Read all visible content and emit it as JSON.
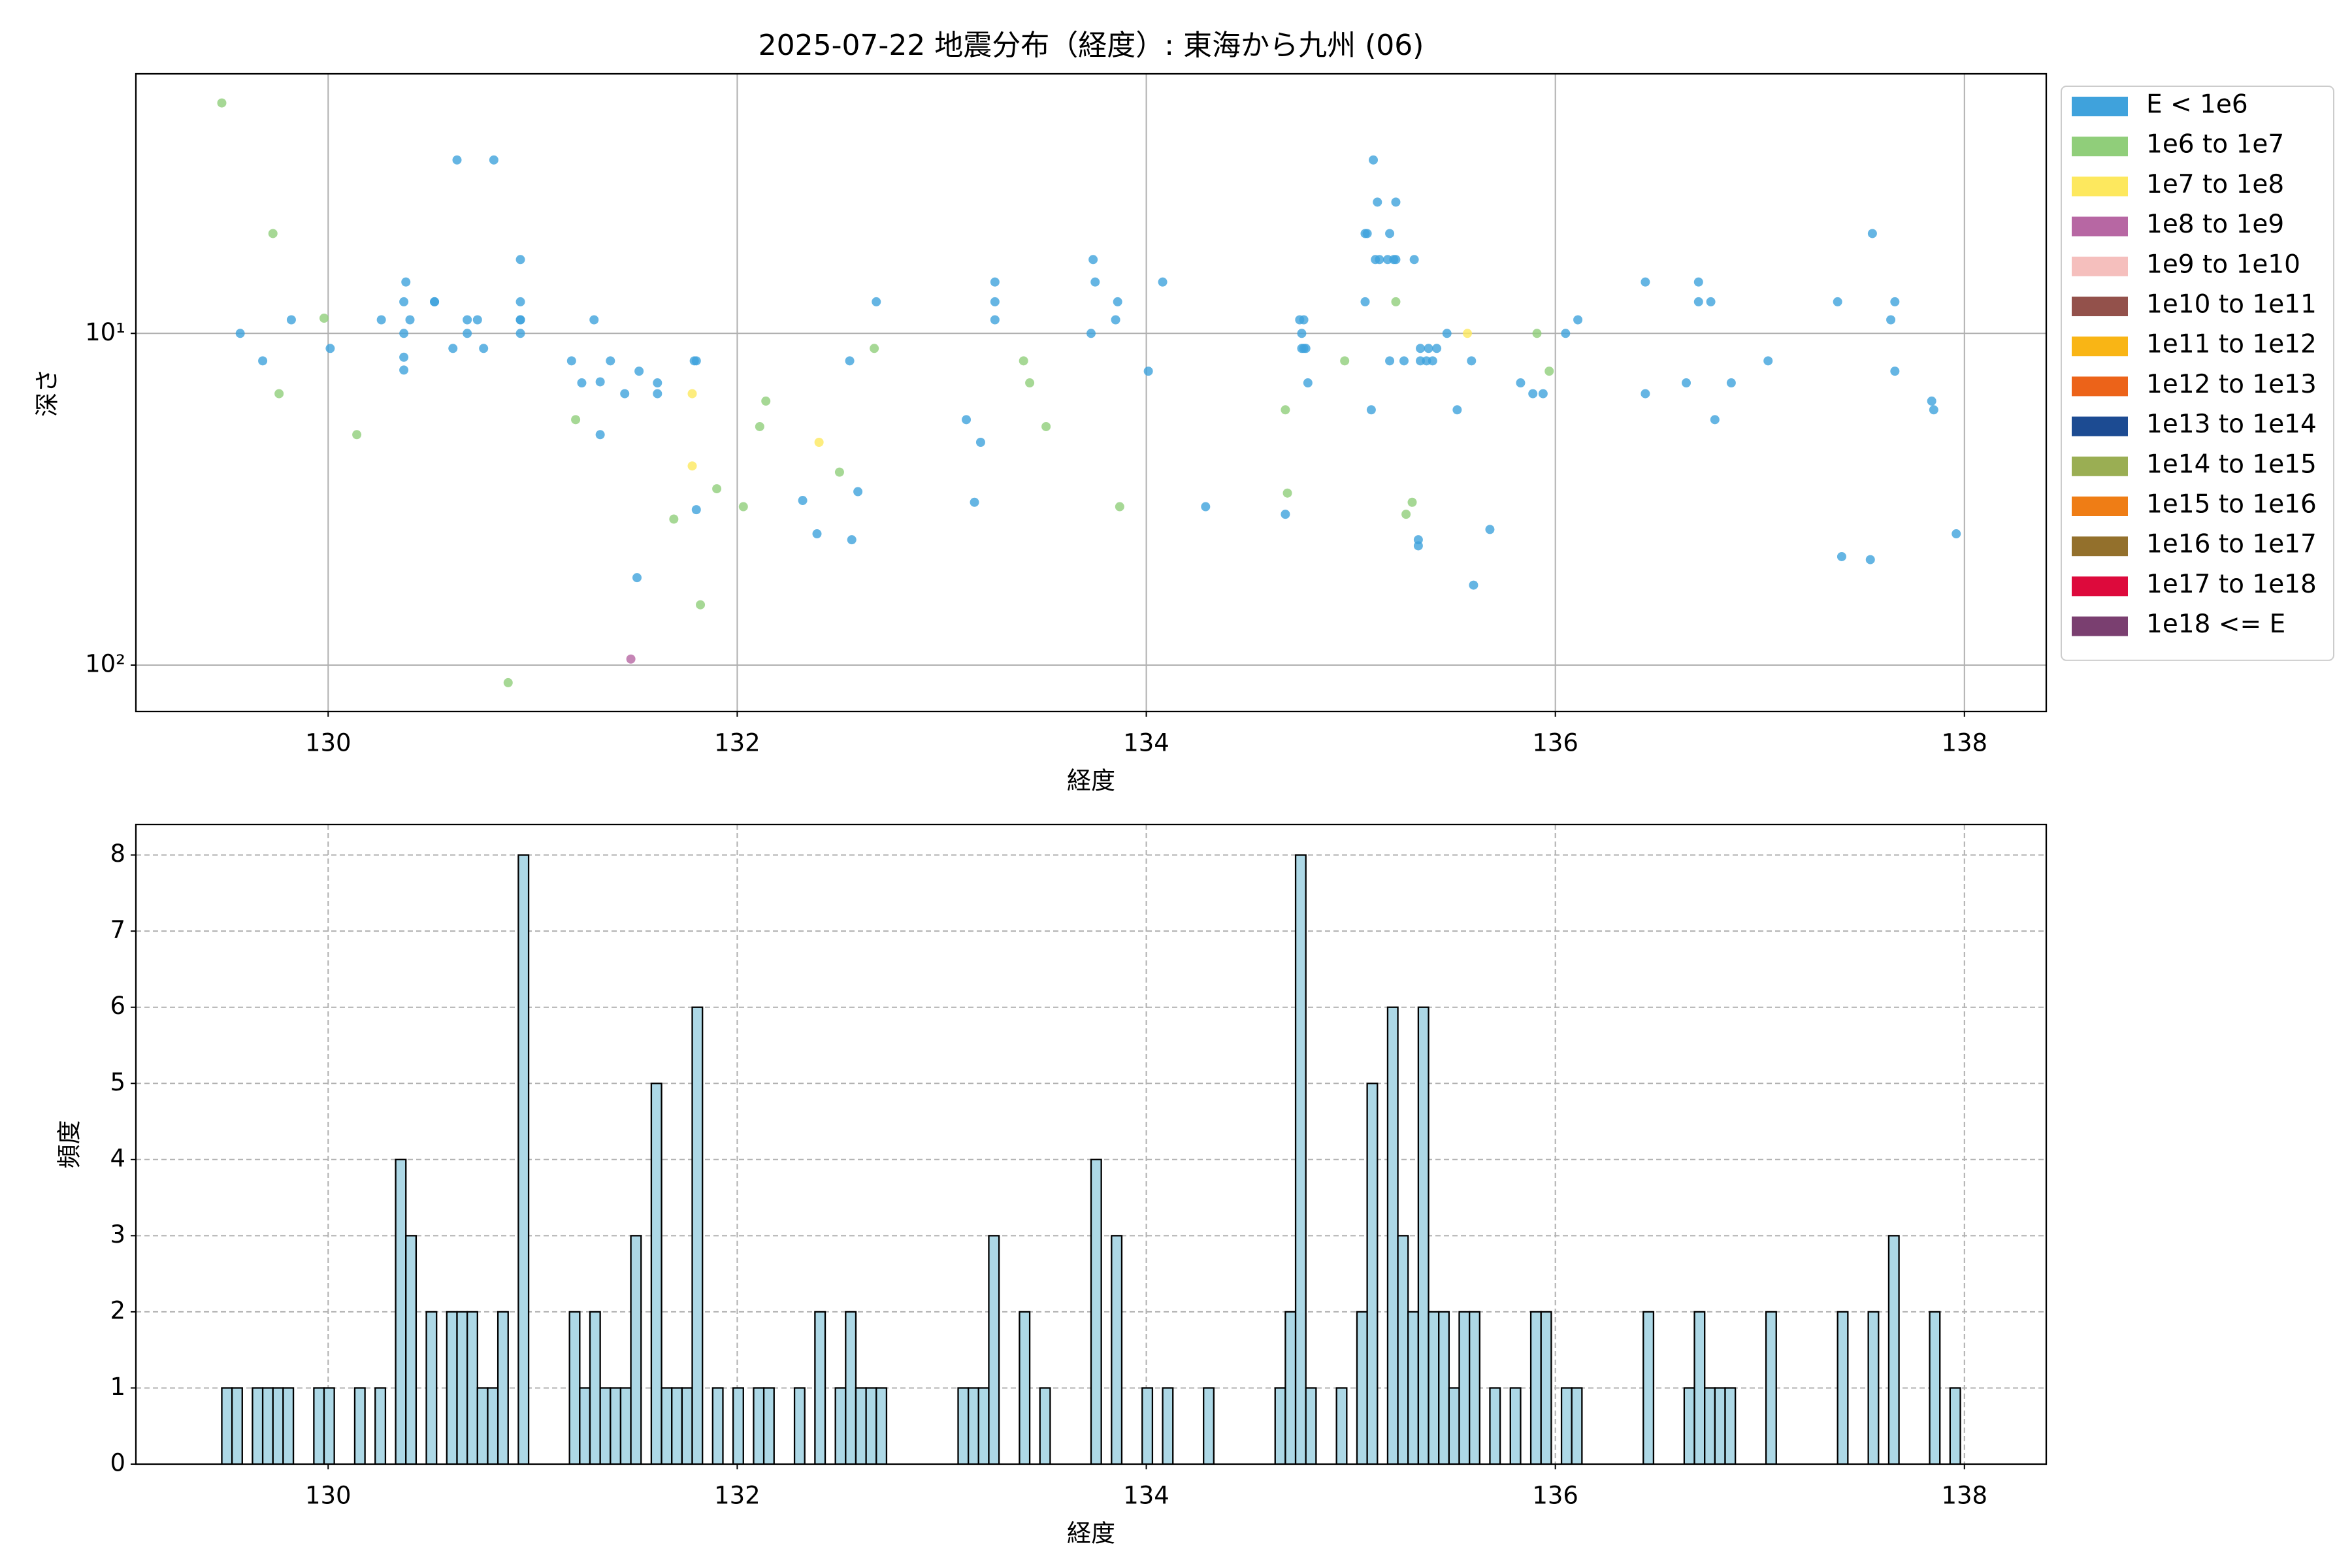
{
  "chart_data": [
    {
      "type": "scatter",
      "title": "2025-07-22 地震分布（経度）: 東海から九州 (06)",
      "xlabel": "経度",
      "ylabel": "深さ",
      "xlim": [
        129.06,
        138.4
      ],
      "xticks": [
        130,
        132,
        134,
        136,
        138
      ],
      "ylim": [
        138,
        1.65
      ],
      "yscale": "log",
      "yticks": [
        {
          "value": 10,
          "label": "10¹"
        },
        {
          "value": 100,
          "label": "10²"
        }
      ],
      "grid": true,
      "grid_style": "solid",
      "legend": "outside-right",
      "series": [
        {
          "name": "E < 1e6",
          "color": "#3fa2dc",
          "x": [
            129.57,
            129.68,
            129.82,
            130.01,
            130.26,
            130.37,
            130.37,
            130.37,
            130.37,
            130.38,
            130.4,
            130.52,
            130.52,
            130.61,
            130.63,
            130.68,
            130.68,
            130.73,
            130.76,
            130.81,
            130.94,
            130.94,
            130.94,
            130.94,
            130.94,
            131.19,
            131.24,
            131.3,
            131.33,
            131.33,
            131.38,
            131.45,
            131.52,
            131.61,
            131.61,
            131.79,
            131.8,
            131.51,
            131.8,
            132.32,
            132.39,
            132.56,
            132.59,
            132.55,
            132.68,
            133.12,
            133.16,
            133.19,
            133.26,
            133.26,
            133.26,
            133.73,
            133.74,
            133.75,
            133.85,
            133.86,
            134.01,
            134.08,
            134.29,
            134.68,
            134.75,
            134.76,
            134.76,
            134.77,
            134.77,
            134.78,
            134.79,
            135.07,
            135.07,
            135.08,
            135.1,
            135.11,
            135.12,
            135.13,
            135.14,
            135.18,
            135.19,
            135.19,
            135.21,
            135.22,
            135.22,
            135.26,
            135.31,
            135.34,
            135.34,
            135.33,
            135.33,
            135.37,
            135.38,
            135.4,
            135.42,
            135.47,
            135.52,
            135.59,
            135.6,
            135.68,
            135.83,
            135.89,
            135.94,
            136.05,
            136.11,
            136.44,
            136.44,
            136.64,
            136.7,
            136.7,
            136.76,
            136.78,
            136.86,
            137.04,
            137.38,
            137.4,
            137.54,
            137.55,
            137.64,
            137.66,
            137.66,
            137.84,
            137.85,
            137.96
          ],
          "values": [
            10,
            12.1,
            9.1,
            11.1,
            9.1,
            8.03,
            10,
            11.8,
            12.9,
            7.0,
            9.1,
            8.03,
            8.03,
            11.1,
            3.0,
            10,
            9.1,
            9.1,
            11.1,
            3.0,
            5.99,
            8.03,
            9.1,
            9.1,
            10,
            12.1,
            14.1,
            9.1,
            14.0,
            20.2,
            12.1,
            15.2,
            13.0,
            14.1,
            15.2,
            12.1,
            12.1,
            54.5,
            34.0,
            31.9,
            40.2,
            41.9,
            30.0,
            12.1,
            8.03,
            18.2,
            32.3,
            21.3,
            7.0,
            8.03,
            9.1,
            10,
            5.99,
            7.0,
            9.1,
            8.03,
            13.0,
            7.0,
            33.3,
            35.1,
            9.1,
            11.1,
            10,
            9.1,
            11.1,
            11.1,
            14.1,
            8.03,
            5.0,
            5.0,
            17.0,
            3.0,
            5.99,
            4.02,
            5.99,
            5.99,
            12.1,
            5.0,
            5.99,
            5.99,
            4.02,
            12.1,
            5.99,
            11.1,
            12.1,
            41.9,
            43.7,
            12.1,
            11.1,
            12.1,
            11.1,
            10,
            17.0,
            12.1,
            57.4,
            39.0,
            14.1,
            15.2,
            15.2,
            10,
            9.1,
            7.0,
            15.2,
            14.1,
            7.0,
            8.03,
            8.03,
            18.2,
            14.1,
            12.1,
            8.03,
            47.1,
            48.1,
            5.0,
            9.1,
            8.03,
            13.0,
            16.0,
            17.0,
            40.2
          ]
        },
        {
          "name": "1e6 to 1e7",
          "color": "#90ce7a",
          "x": [
            129.48,
            129.73,
            129.76,
            129.98,
            130.14,
            131.21,
            131.69,
            131.82,
            131.9,
            132.03,
            132.11,
            132.14,
            132.5,
            132.67,
            133.4,
            133.43,
            133.51,
            133.87,
            134.68,
            134.69,
            134.97,
            135.22,
            135.27,
            135.3,
            135.91,
            135.97,
            130.88
          ],
          "values": [
            2.02,
            5.0,
            15.2,
            9.0,
            20.2,
            18.2,
            36.3,
            65.8,
            29.4,
            33.3,
            19.1,
            16.0,
            26.2,
            11.1,
            12.1,
            14.1,
            19.1,
            33.3,
            17.0,
            30.3,
            12.1,
            8.03,
            35.1,
            32.3,
            10,
            13.0,
            113
          ]
        },
        {
          "name": "1e7 to 1e8",
          "color": "#fde85e",
          "x": [
            131.78,
            131.78,
            132.4,
            135.57
          ],
          "values": [
            15.2,
            25.1,
            21.3,
            10
          ]
        },
        {
          "name": "1e8 to 1e9",
          "color": "#b767a3",
          "x": [
            131.48
          ],
          "values": [
            95.9
          ]
        },
        {
          "name": "1e9 to 1e10",
          "color": "#f5bfbd",
          "x": [],
          "values": []
        },
        {
          "name": "1e10 to 1e11",
          "color": "#93514b",
          "x": [],
          "values": []
        },
        {
          "name": "1e11 to 1e12",
          "color": "#f9b515",
          "x": [],
          "values": []
        },
        {
          "name": "1e12 to 1e13",
          "color": "#ec6319",
          "x": [],
          "values": []
        },
        {
          "name": "1e13 to 1e14",
          "color": "#1c4b92",
          "x": [],
          "values": []
        },
        {
          "name": "1e14 to 1e15",
          "color": "#9aae53",
          "x": [],
          "values": []
        },
        {
          "name": "1e15 to 1e16",
          "color": "#ef7d15",
          "x": [],
          "values": []
        },
        {
          "name": "1e16 to 1e17",
          "color": "#93702c",
          "x": [],
          "values": []
        },
        {
          "name": "1e17 to 1e18",
          "color": "#dd0a3c",
          "x": [],
          "values": []
        },
        {
          "name": "1e18 <= E",
          "color": "#7a3f70",
          "x": [],
          "values": []
        }
      ]
    },
    {
      "type": "histogram",
      "xlabel": "経度",
      "ylabel": "頻度",
      "color": "#add8e6",
      "edgecolor": "#000000",
      "xlim": [
        129.06,
        138.4
      ],
      "xticks": [
        130,
        132,
        134,
        136,
        138
      ],
      "ylim": [
        0,
        8.4
      ],
      "yticks": [
        0,
        1,
        2,
        3,
        4,
        5,
        6,
        7,
        8
      ],
      "grid": true,
      "grid_style": "dashed",
      "bins": [
        129.48,
        129.53,
        129.58,
        129.63,
        129.68,
        129.73,
        129.78,
        129.83,
        129.88,
        129.93,
        129.98,
        130.03,
        130.08,
        130.13,
        130.18,
        130.23,
        130.28,
        130.33,
        130.38,
        130.43,
        130.48,
        130.53,
        130.58,
        130.63,
        130.68,
        130.73,
        130.78,
        130.83,
        130.88,
        130.93,
        130.98,
        131.03,
        131.08,
        131.13,
        131.18,
        131.23,
        131.28,
        131.33,
        131.38,
        131.43,
        131.48,
        131.53,
        131.58,
        131.63,
        131.68,
        131.73,
        131.78,
        131.83,
        131.88,
        131.93,
        131.98,
        132.03,
        132.08,
        132.13,
        132.18,
        132.23,
        132.28,
        132.33,
        132.38,
        132.43,
        132.48,
        132.53,
        132.58,
        132.63,
        132.68,
        132.73,
        132.78,
        132.83,
        132.88,
        132.93,
        132.98,
        133.03,
        133.08,
        133.13,
        133.18,
        133.23,
        133.28,
        133.33,
        133.38,
        133.43,
        133.48,
        133.53,
        133.58,
        133.63,
        133.68,
        133.73,
        133.78,
        133.83,
        133.88,
        133.93,
        133.98,
        134.03,
        134.08,
        134.13,
        134.18,
        134.23,
        134.28,
        134.33,
        134.38,
        134.43,
        134.48,
        134.53,
        134.58,
        134.63,
        134.68,
        134.73,
        134.78,
        134.83,
        134.88,
        134.93,
        134.98,
        135.03,
        135.08,
        135.13,
        135.18,
        135.23,
        135.28,
        135.33,
        135.38,
        135.43,
        135.48,
        135.53,
        135.58,
        135.63,
        135.68,
        135.73,
        135.78,
        135.83,
        135.88,
        135.93,
        135.98,
        136.03,
        136.08,
        136.13,
        136.18,
        136.23,
        136.28,
        136.33,
        136.38,
        136.43,
        136.48,
        136.53,
        136.58,
        136.63,
        136.68,
        136.73,
        136.78,
        136.83,
        136.88,
        136.93,
        136.98,
        137.03,
        137.08,
        137.13,
        137.18,
        137.23,
        137.28,
        137.33,
        137.38,
        137.43,
        137.48,
        137.53,
        137.58,
        137.63,
        137.68,
        137.73,
        137.78,
        137.83,
        137.88,
        137.93,
        137.98
      ],
      "values": [
        1,
        1,
        0,
        1,
        1,
        1,
        1,
        0,
        0,
        1,
        1,
        0,
        0,
        1,
        0,
        1,
        0,
        4,
        3,
        0,
        2,
        0,
        2,
        2,
        2,
        1,
        1,
        2,
        0,
        8,
        0,
        0,
        0,
        0,
        2,
        1,
        2,
        1,
        1,
        1,
        3,
        0,
        5,
        1,
        1,
        1,
        6,
        0,
        1,
        0,
        1,
        0,
        1,
        1,
        0,
        0,
        1,
        0,
        2,
        0,
        1,
        2,
        1,
        1,
        1,
        0,
        0,
        0,
        0,
        0,
        0,
        0,
        1,
        1,
        1,
        3,
        0,
        0,
        2,
        0,
        1,
        0,
        0,
        0,
        0,
        4,
        0,
        3,
        0,
        0,
        1,
        0,
        1,
        0,
        0,
        0,
        1,
        0,
        0,
        0,
        0,
        0,
        0,
        1,
        2,
        8,
        1,
        0,
        0,
        1,
        0,
        2,
        5,
        0,
        6,
        3,
        2,
        6,
        2,
        2,
        1,
        2,
        2,
        0,
        1,
        0,
        1,
        0,
        2,
        2,
        0,
        1,
        1,
        0,
        0,
        0,
        0,
        0,
        0,
        2,
        0,
        0,
        0,
        1,
        2,
        1,
        1,
        1,
        0,
        0,
        0,
        2,
        0,
        0,
        0,
        0,
        0,
        0,
        2,
        0,
        0,
        2,
        0,
        3,
        0,
        0,
        0,
        2,
        0,
        1
      ]
    }
  ]
}
